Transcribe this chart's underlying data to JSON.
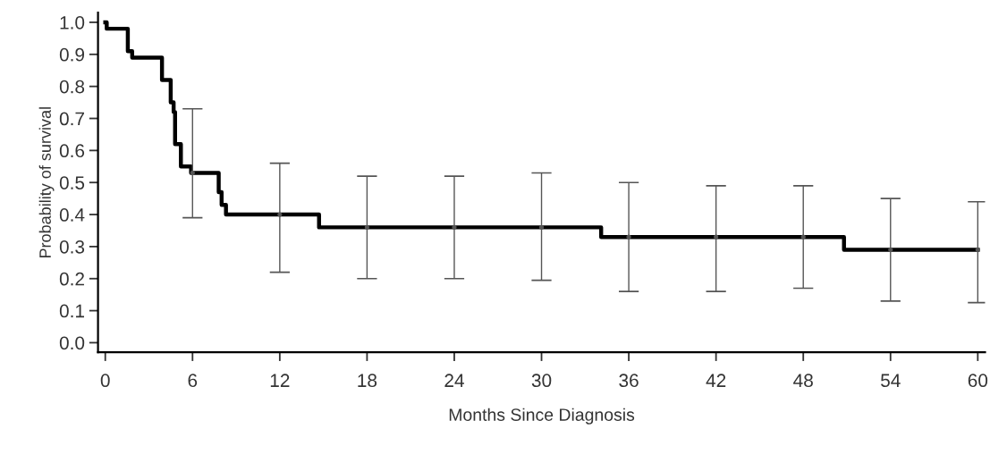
{
  "chart_data": {
    "type": "step",
    "xlabel": "Months Since Diagnosis",
    "ylabel": "Probability of survival",
    "series": [
      {
        "color": "#000000",
        "x": [
          0,
          0.1,
          1.55,
          1.85,
          3.9,
          4.5,
          4.7,
          4.8,
          5.2,
          5.9,
          7.8,
          8.0,
          8.3,
          14.7,
          34.1,
          50.8,
          60
        ],
        "values": [
          1.0,
          0.98,
          0.91,
          0.89,
          0.82,
          0.75,
          0.72,
          0.62,
          0.55,
          0.53,
          0.47,
          0.43,
          0.4,
          0.36,
          0.33,
          0.29,
          0.29
        ]
      },
      {
        "type": "scatter",
        "marker": "circle",
        "color": "#555555",
        "x": [
          6,
          12,
          18,
          24,
          30,
          36,
          42,
          48,
          54,
          60
        ],
        "values": [
          0.53,
          0.4,
          0.36,
          0.36,
          0.36,
          0.33,
          0.33,
          0.33,
          0.29,
          0.29
        ],
        "errors": [
          [
            0.39,
            0.73
          ],
          [
            0.22,
            0.56
          ],
          [
            0.2,
            0.52
          ],
          [
            0.2,
            0.52
          ],
          [
            0.195,
            0.53
          ],
          [
            0.16,
            0.5
          ],
          [
            0.16,
            0.49
          ],
          [
            0.17,
            0.49
          ],
          [
            0.13,
            0.45
          ],
          [
            0.125,
            0.44
          ]
        ]
      }
    ],
    "xlim": [
      -0.5,
      60.5
    ],
    "xticks": [
      0,
      6,
      12,
      18,
      24,
      30,
      36,
      42,
      48,
      54,
      60
    ],
    "ylim": [
      -0.03,
      1.03
    ],
    "yticks": [
      {
        "value": 0,
        "label": "0.0"
      },
      {
        "value": 0.1,
        "label": "0.1"
      },
      {
        "value": 0.2,
        "label": "0.2"
      },
      {
        "value": 0.3,
        "label": "0.3"
      },
      {
        "value": 0.4,
        "label": "0.4"
      },
      {
        "value": 0.5,
        "label": "0.5"
      },
      {
        "value": 0.6,
        "label": "0.6"
      },
      {
        "value": 0.7,
        "label": "0.7"
      },
      {
        "value": 0.8,
        "label": "0.8"
      },
      {
        "value": 0.9,
        "label": "0.9"
      },
      {
        "value": 1.0,
        "label": "1.0"
      }
    ],
    "grid": false
  }
}
